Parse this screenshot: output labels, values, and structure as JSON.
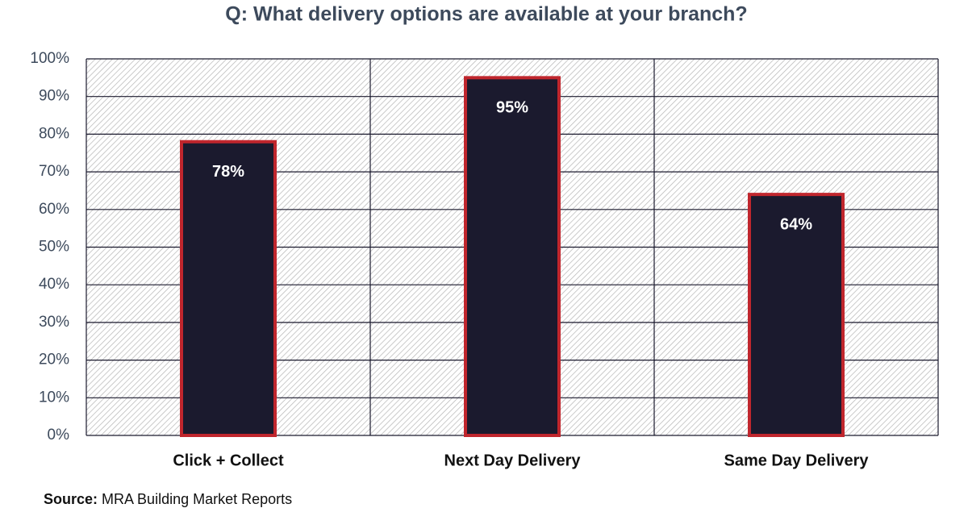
{
  "chart_data": {
    "type": "bar",
    "title": "Q: What delivery options are available at your branch?",
    "categories": [
      "Click + Collect",
      "Next Day Delivery",
      "Same Day Delivery"
    ],
    "values": [
      78,
      95,
      64
    ],
    "value_labels": [
      "78%",
      "95%",
      "64%"
    ],
    "color": "#1b1a2e",
    "edge_color": "#c0262d",
    "ylim": [
      0,
      100
    ],
    "yticks": [
      {
        "value": 0,
        "label": "0%"
      },
      {
        "value": 10,
        "label": "10%"
      },
      {
        "value": 20,
        "label": "20%"
      },
      {
        "value": 30,
        "label": "30%"
      },
      {
        "value": 40,
        "label": "40%"
      },
      {
        "value": 50,
        "label": "50%"
      },
      {
        "value": 60,
        "label": "60%"
      },
      {
        "value": 70,
        "label": "70%"
      },
      {
        "value": 80,
        "label": "80%"
      },
      {
        "value": 90,
        "label": "90%"
      },
      {
        "value": 100,
        "label": "100%"
      }
    ],
    "grid": true,
    "source_label": "Source:",
    "source": "MRA Building Market Reports"
  }
}
